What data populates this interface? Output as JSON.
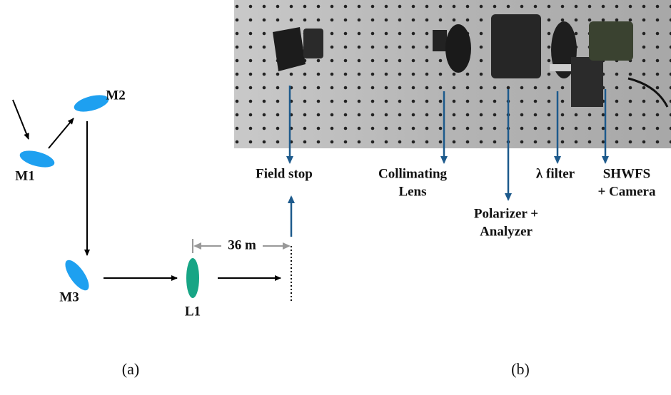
{
  "panel_a": {
    "mirrors": [
      "M1",
      "M2",
      "M3"
    ],
    "lens": "L1",
    "distance": "36 m",
    "caption": "(a)"
  },
  "panel_b": {
    "labels": [
      {
        "lines": [
          "Field stop"
        ]
      },
      {
        "lines": [
          "Collimating",
          "Lens"
        ]
      },
      {
        "lines": [
          "Polarizer +",
          "Analyzer"
        ]
      },
      {
        "lines": [
          "λ filter"
        ]
      },
      {
        "lines": [
          "SHWFS",
          "+ Camera"
        ]
      }
    ],
    "caption": "(b)"
  }
}
